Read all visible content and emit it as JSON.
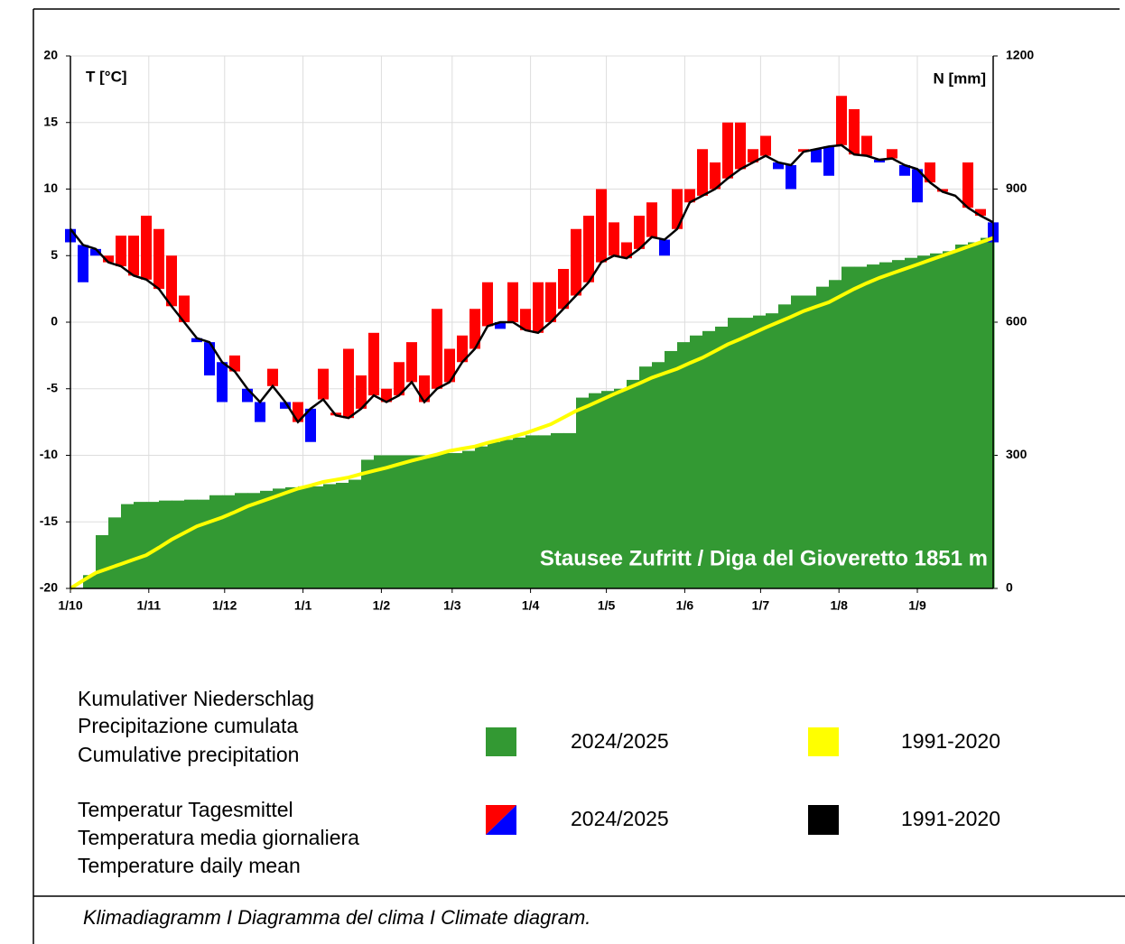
{
  "chart_data": {
    "type": "climate",
    "y_label": "T [°C]",
    "y2_label": "N [mm]",
    "annotation": "Stausee Zufritt / Diga del Gioveretto 1851 m",
    "caption": "Klimadiagramm I Diagramma del clima I Climate diagram.",
    "xlim": [
      0,
      365
    ],
    "xticks": [
      {
        "value": 0,
        "label": "1/10"
      },
      {
        "value": 31,
        "label": "1/11"
      },
      {
        "value": 61,
        "label": "1/12"
      },
      {
        "value": 92,
        "label": "1/1"
      },
      {
        "value": 123,
        "label": "1/2"
      },
      {
        "value": 151,
        "label": "1/3"
      },
      {
        "value": 182,
        "label": "1/4"
      },
      {
        "value": 212,
        "label": "1/5"
      },
      {
        "value": 243,
        "label": "1/6"
      },
      {
        "value": 273,
        "label": "1/7"
      },
      {
        "value": 304,
        "label": "1/8"
      },
      {
        "value": 335,
        "label": "1/9"
      }
    ],
    "ylim": [
      -20,
      20
    ],
    "yticks": [
      -20,
      -15,
      -10,
      -5,
      0,
      5,
      10,
      15,
      20
    ],
    "y2lim": [
      0,
      1200
    ],
    "y2ticks": [
      0,
      300,
      600,
      900,
      1200
    ],
    "grid": true,
    "x": [
      0,
      5,
      10,
      15,
      20,
      25,
      30,
      35,
      40,
      45,
      50,
      55,
      60,
      65,
      70,
      75,
      80,
      85,
      90,
      95,
      100,
      105,
      110,
      115,
      120,
      125,
      130,
      135,
      140,
      145,
      150,
      155,
      160,
      165,
      170,
      175,
      180,
      185,
      190,
      195,
      200,
      205,
      210,
      215,
      220,
      225,
      230,
      235,
      240,
      245,
      250,
      255,
      260,
      265,
      270,
      275,
      280,
      285,
      290,
      295,
      300,
      305,
      310,
      315,
      320,
      325,
      330,
      335,
      340,
      345,
      350,
      355,
      360,
      365
    ],
    "series": [
      {
        "name": "2024/2025",
        "color": "#ff0000",
        "color_below": "#0000ff",
        "values": [
          6,
          3,
          5,
          5,
          6.5,
          6.5,
          8,
          7,
          5,
          2,
          -1.5,
          -4,
          -6,
          -2.5,
          -6,
          -7.5,
          -3.5,
          -6.5,
          -6,
          -9,
          -3.5,
          -6.8,
          -2,
          -4,
          -0.8,
          -5,
          -3,
          -1.5,
          -4,
          1,
          -2,
          -1,
          1,
          3,
          -0.5,
          3,
          1,
          3,
          3,
          4,
          7,
          8,
          10,
          7.5,
          6,
          8,
          9,
          5,
          10,
          10,
          13,
          12,
          15,
          15,
          13,
          14,
          11.5,
          10,
          13,
          12,
          11,
          17,
          16,
          14,
          12,
          13,
          11,
          9,
          12,
          10,
          9.5,
          12,
          8.5,
          6
        ]
      },
      {
        "name": "1991-2020",
        "color": "#000000",
        "values": [
          7,
          5.8,
          5.5,
          4.5,
          4.2,
          3.5,
          3.2,
          2.5,
          1.2,
          0,
          -1.2,
          -1.5,
          -3,
          -3.7,
          -5,
          -6,
          -4.8,
          -6,
          -7.5,
          -6.5,
          -5.8,
          -7,
          -7.2,
          -6.5,
          -5.5,
          -6,
          -5.5,
          -4.5,
          -6,
          -5,
          -4.5,
          -3,
          -2,
          -0.3,
          0,
          0,
          -0.6,
          -0.8,
          0,
          1,
          2,
          3,
          4.5,
          5,
          4.8,
          5.5,
          6.4,
          6.2,
          7,
          9,
          9.5,
          10,
          10.8,
          11.5,
          12,
          12.5,
          12,
          11.8,
          12.8,
          13,
          13.2,
          13.3,
          12.6,
          12.5,
          12.2,
          12.3,
          11.8,
          11.5,
          10.5,
          9.8,
          9.5,
          8.6,
          8,
          7.5
        ]
      },
      {
        "name": "2024/2025",
        "color": "#339933",
        "axis": "y2",
        "values": [
          0,
          30,
          120,
          160,
          190,
          195,
          195,
          198,
          198,
          200,
          200,
          210,
          210,
          215,
          215,
          220,
          225,
          228,
          230,
          230,
          235,
          238,
          245,
          290,
          300,
          300,
          300,
          300,
          300,
          305,
          305,
          310,
          320,
          330,
          335,
          340,
          345,
          345,
          350,
          350,
          430,
          440,
          445,
          450,
          470,
          500,
          510,
          535,
          555,
          570,
          580,
          590,
          610,
          610,
          615,
          620,
          640,
          660,
          660,
          680,
          695,
          725,
          725,
          730,
          735,
          740,
          745,
          750,
          755,
          760,
          775,
          780,
          790,
          800
        ]
      },
      {
        "name": "1991-2020",
        "color": "#ffff00",
        "axis": "y2",
        "values": [
          0,
          18,
          35,
          45,
          55,
          65,
          75,
          92,
          110,
          125,
          140,
          150,
          160,
          172,
          185,
          195,
          205,
          215,
          225,
          232,
          240,
          245,
          250,
          258,
          265,
          272,
          280,
          288,
          295,
          302,
          310,
          315,
          320,
          328,
          335,
          342,
          350,
          360,
          370,
          385,
          400,
          412,
          425,
          438,
          450,
          462,
          475,
          485,
          495,
          508,
          520,
          535,
          550,
          562,
          575,
          588,
          600,
          612,
          625,
          635,
          645,
          660,
          675,
          688,
          700,
          710,
          720,
          730,
          740,
          750,
          760,
          770,
          780,
          790
        ]
      }
    ],
    "legend_groups": [
      {
        "lines": [
          "Kumulativer Niederschlag",
          "Precipitazione cumulata",
          "Cumulative precipitation"
        ]
      },
      {
        "lines": [
          "Temperatur Tagesmittel",
          "Temperatura media giornaliera",
          "Temperature daily mean"
        ]
      }
    ]
  }
}
